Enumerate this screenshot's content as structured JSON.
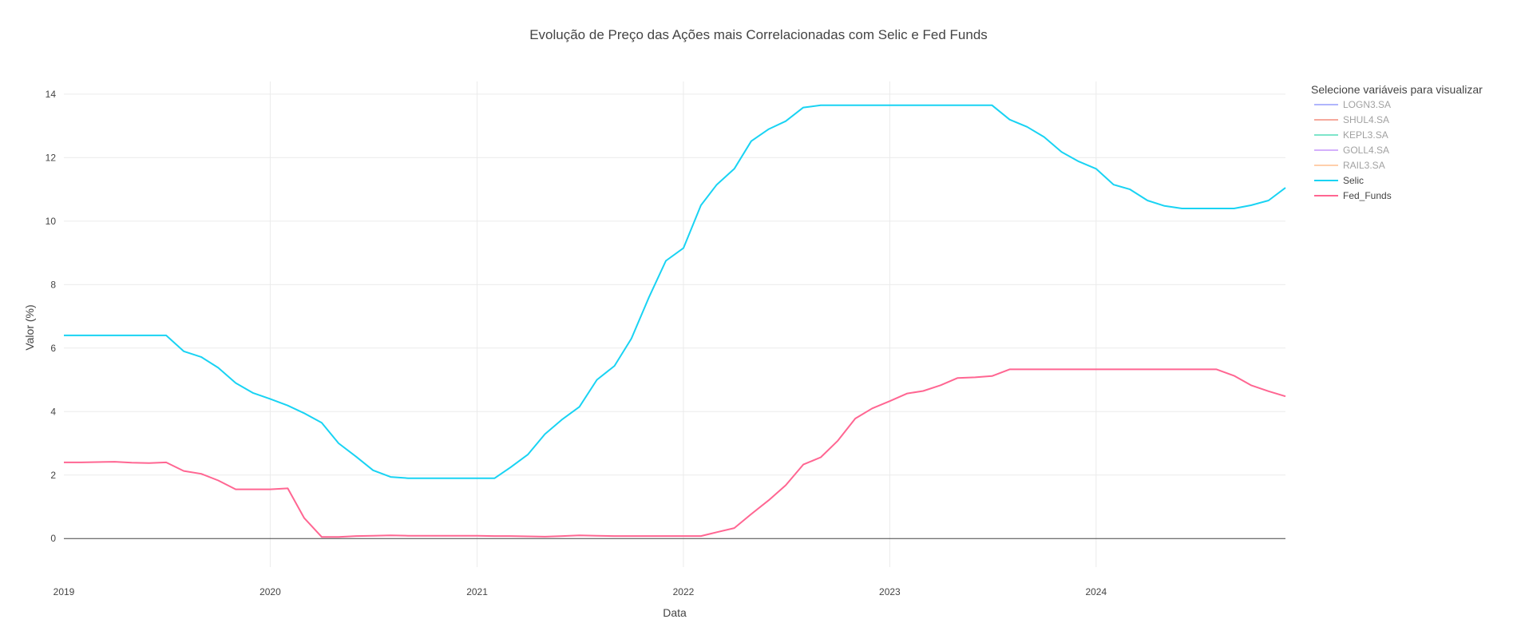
{
  "chart_data": {
    "type": "line",
    "title": "Evolução de Preço das Ações mais Correlacionadas com Selic e Fed Funds",
    "xlabel": "Data",
    "ylabel": "Valor (%)",
    "xlim": [
      "2019-01-01",
      "2024-12-01"
    ],
    "ylim": [
      -0.9,
      14.4
    ],
    "xticks": [
      "2019",
      "2020",
      "2021",
      "2022",
      "2023",
      "2024"
    ],
    "yticks": [
      0,
      2,
      4,
      6,
      8,
      10,
      12,
      14
    ],
    "grid": true,
    "legend": {
      "title": "Selecione variáveis para visualizar",
      "position": "top-right"
    },
    "series": [
      {
        "name": "LOGN3.SA",
        "color": "#636efa",
        "visible": "legendonly",
        "x": [],
        "y": []
      },
      {
        "name": "SHUL4.SA",
        "color": "#ef553b",
        "visible": "legendonly",
        "x": [],
        "y": []
      },
      {
        "name": "KEPL3.SA",
        "color": "#00cc96",
        "visible": "legendonly",
        "x": [],
        "y": []
      },
      {
        "name": "GOLL4.SA",
        "color": "#ab63fa",
        "visible": "legendonly",
        "x": [],
        "y": []
      },
      {
        "name": "RAIL3.SA",
        "color": "#ffa15a",
        "visible": "legendonly",
        "x": [],
        "y": []
      },
      {
        "name": "Selic",
        "color": "#19d3f3",
        "visible": true,
        "x": [
          "2019-01-01",
          "2019-02-01",
          "2019-03-01",
          "2019-04-01",
          "2019-05-01",
          "2019-06-01",
          "2019-07-01",
          "2019-08-01",
          "2019-09-01",
          "2019-10-01",
          "2019-11-01",
          "2019-12-01",
          "2020-01-01",
          "2020-02-01",
          "2020-03-01",
          "2020-04-01",
          "2020-05-01",
          "2020-06-01",
          "2020-07-01",
          "2020-08-01",
          "2020-09-01",
          "2020-10-01",
          "2020-11-01",
          "2020-12-01",
          "2021-01-01",
          "2021-02-01",
          "2021-03-01",
          "2021-04-01",
          "2021-05-01",
          "2021-06-01",
          "2021-07-01",
          "2021-08-01",
          "2021-09-01",
          "2021-10-01",
          "2021-11-01",
          "2021-12-01",
          "2022-01-01",
          "2022-02-01",
          "2022-03-01",
          "2022-04-01",
          "2022-05-01",
          "2022-06-01",
          "2022-07-01",
          "2022-08-01",
          "2022-09-01",
          "2022-10-01",
          "2022-11-01",
          "2022-12-01",
          "2023-01-01",
          "2023-02-01",
          "2023-03-01",
          "2023-04-01",
          "2023-05-01",
          "2023-06-01",
          "2023-07-01",
          "2023-08-01",
          "2023-09-01",
          "2023-10-01",
          "2023-11-01",
          "2023-12-01",
          "2024-01-01",
          "2024-02-01",
          "2024-03-01",
          "2024-04-01",
          "2024-05-01",
          "2024-06-01",
          "2024-07-01",
          "2024-08-01",
          "2024-09-01",
          "2024-10-01",
          "2024-11-01",
          "2024-12-01"
        ],
        "y": [
          6.4,
          6.4,
          6.4,
          6.4,
          6.4,
          6.4,
          6.4,
          5.9,
          5.72,
          5.38,
          4.9,
          4.59,
          4.4,
          4.19,
          3.95,
          3.65,
          3.0,
          2.58,
          2.15,
          1.94,
          1.9,
          1.9,
          1.9,
          1.9,
          1.9,
          1.9,
          2.24,
          2.65,
          3.29,
          3.76,
          4.15,
          5.0,
          5.44,
          6.3,
          7.6,
          8.75,
          9.15,
          10.5,
          11.15,
          11.65,
          12.52,
          12.9,
          13.15,
          13.58,
          13.65,
          13.65,
          13.65,
          13.65,
          13.65,
          13.65,
          13.65,
          13.65,
          13.65,
          13.65,
          13.65,
          13.2,
          12.97,
          12.65,
          12.18,
          11.88,
          11.65,
          11.15,
          11.0,
          10.65,
          10.48,
          10.4,
          10.4,
          10.4,
          10.4,
          10.5,
          10.65,
          11.05
        ]
      },
      {
        "name": "Fed_Funds",
        "color": "#ff6692",
        "visible": true,
        "x": [
          "2019-01-01",
          "2019-02-01",
          "2019-03-01",
          "2019-04-01",
          "2019-05-01",
          "2019-06-01",
          "2019-07-01",
          "2019-08-01",
          "2019-09-01",
          "2019-10-01",
          "2019-11-01",
          "2019-12-01",
          "2020-01-01",
          "2020-02-01",
          "2020-03-01",
          "2020-04-01",
          "2020-05-01",
          "2020-06-01",
          "2020-07-01",
          "2020-08-01",
          "2020-09-01",
          "2020-10-01",
          "2020-11-01",
          "2020-12-01",
          "2021-01-01",
          "2021-02-01",
          "2021-03-01",
          "2021-04-01",
          "2021-05-01",
          "2021-06-01",
          "2021-07-01",
          "2021-08-01",
          "2021-09-01",
          "2021-10-01",
          "2021-11-01",
          "2021-12-01",
          "2022-01-01",
          "2022-02-01",
          "2022-03-01",
          "2022-04-01",
          "2022-05-01",
          "2022-06-01",
          "2022-07-01",
          "2022-08-01",
          "2022-09-01",
          "2022-10-01",
          "2022-11-01",
          "2022-12-01",
          "2023-01-01",
          "2023-02-01",
          "2023-03-01",
          "2023-04-01",
          "2023-05-01",
          "2023-06-01",
          "2023-07-01",
          "2023-08-01",
          "2023-09-01",
          "2023-10-01",
          "2023-11-01",
          "2023-12-01",
          "2024-01-01",
          "2024-02-01",
          "2024-03-01",
          "2024-04-01",
          "2024-05-01",
          "2024-06-01",
          "2024-07-01",
          "2024-08-01",
          "2024-09-01",
          "2024-10-01",
          "2024-11-01",
          "2024-12-01"
        ],
        "y": [
          2.4,
          2.4,
          2.41,
          2.42,
          2.39,
          2.38,
          2.4,
          2.13,
          2.04,
          1.83,
          1.55,
          1.55,
          1.55,
          1.58,
          0.65,
          0.05,
          0.05,
          0.08,
          0.09,
          0.1,
          0.09,
          0.09,
          0.09,
          0.09,
          0.09,
          0.08,
          0.08,
          0.07,
          0.06,
          0.08,
          0.1,
          0.09,
          0.08,
          0.08,
          0.08,
          0.08,
          0.08,
          0.08,
          0.2,
          0.33,
          0.77,
          1.21,
          1.68,
          2.33,
          2.56,
          3.08,
          3.78,
          4.1,
          4.33,
          4.57,
          4.65,
          4.83,
          5.06,
          5.08,
          5.12,
          5.33,
          5.33,
          5.33,
          5.33,
          5.33,
          5.33,
          5.33,
          5.33,
          5.33,
          5.33,
          5.33,
          5.33,
          5.33,
          5.13,
          4.83,
          4.64,
          4.48
        ]
      }
    ]
  }
}
